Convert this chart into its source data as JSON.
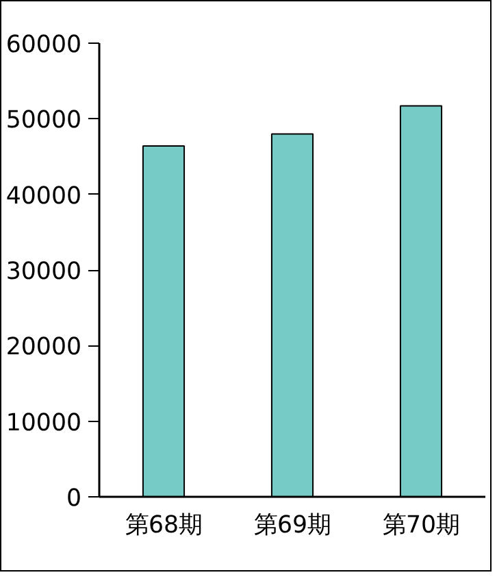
{
  "chart_data": {
    "type": "bar",
    "categories": [
      "第68期",
      "第69期",
      "第70期"
    ],
    "values": [
      46400,
      48000,
      51700
    ],
    "color": "#76cbc6",
    "ylim": [
      0,
      60000
    ],
    "yticks": [
      0,
      10000,
      20000,
      30000,
      40000,
      50000,
      60000
    ],
    "grid": false
  }
}
